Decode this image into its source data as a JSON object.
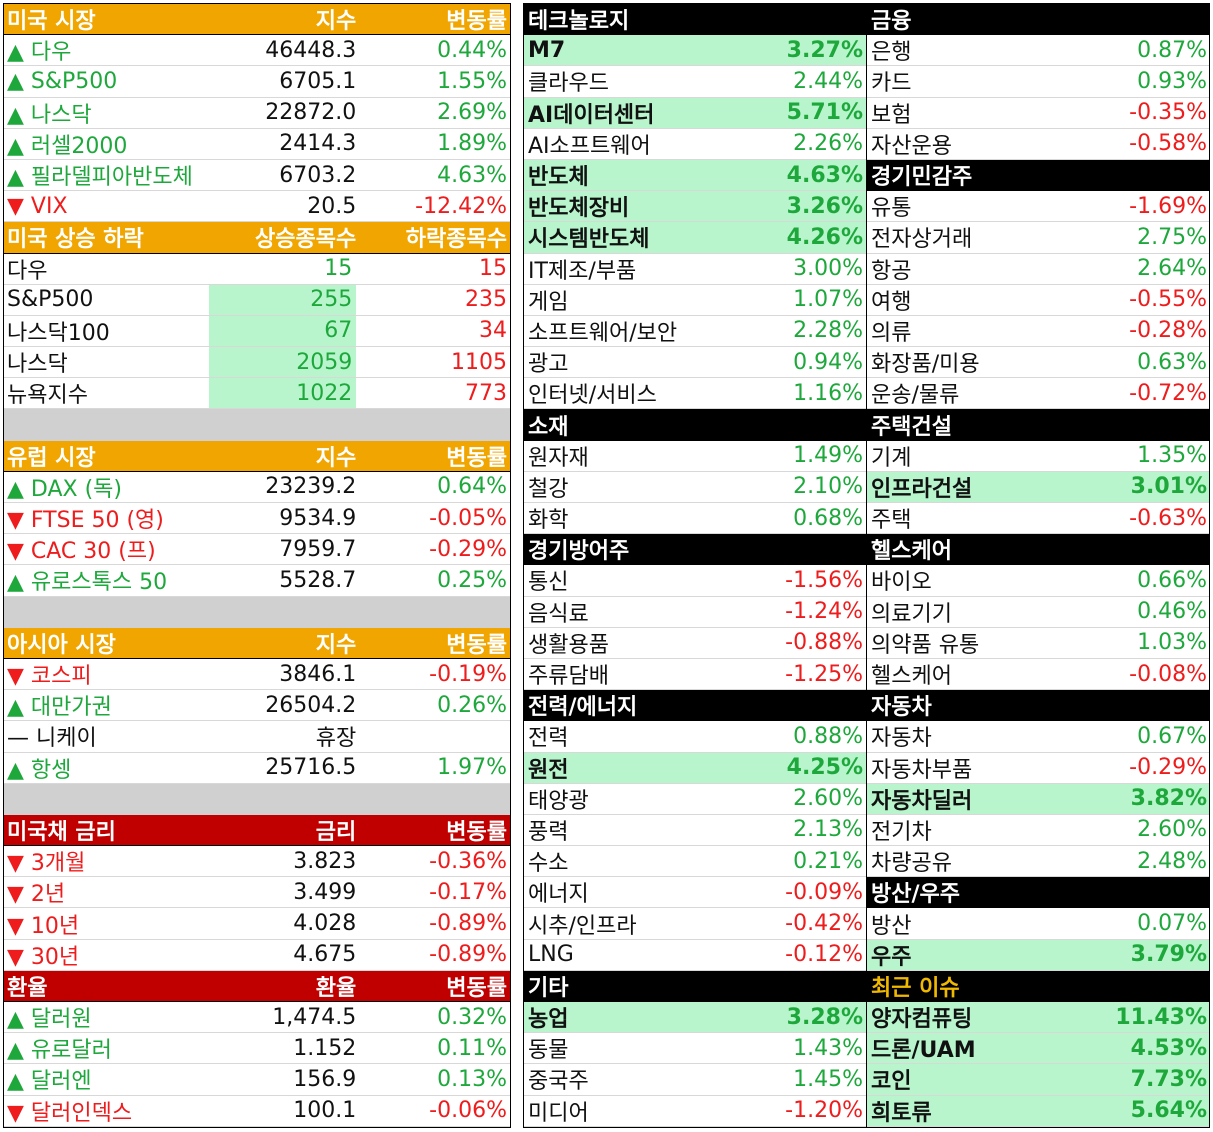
{
  "left_tables": [
    {
      "header": {
        "name": "미국 시장",
        "col1": "지수",
        "col2": "변동률"
      },
      "header_color": "orange",
      "rows": [
        {
          "name": "▲ 다우",
          "v1": "46448.3",
          "v2": "0.44%",
          "dir": "up"
        },
        {
          "name": "▲ S&P500",
          "v1": "6705.1",
          "v2": "1.55%",
          "dir": "up"
        },
        {
          "name": "▲ 나스닥",
          "v1": "22872.0",
          "v2": "2.69%",
          "dir": "up"
        },
        {
          "name": "▲ 러셀2000",
          "v1": "2414.3",
          "v2": "1.89%",
          "dir": "up"
        },
        {
          "name": "▲ 필라델피아반도체",
          "v1": "6703.2",
          "v2": "4.63%",
          "dir": "up"
        },
        {
          "name": "▼ VIX",
          "v1": "20.5",
          "v2": "-12.42%",
          "dir": "down"
        }
      ]
    },
    {
      "header": {
        "name": "미국 상승 하락",
        "col1": "상승종목수",
        "col2": "하락종목수"
      },
      "header_color": "orange",
      "breadth": true,
      "rows": [
        {
          "name": "다우",
          "v1": "15",
          "v2": "15",
          "hl": false
        },
        {
          "name": "S&P500",
          "v1": "255",
          "v2": "235",
          "hl": true
        },
        {
          "name": "나스닥100",
          "v1": "67",
          "v2": "34",
          "hl": true
        },
        {
          "name": "나스닥",
          "v1": "2059",
          "v2": "1105",
          "hl": true
        },
        {
          "name": "뉴욕지수",
          "v1": "1022",
          "v2": "773",
          "hl": true
        }
      ],
      "gap_after": true
    },
    {
      "header": {
        "name": "유럽 시장",
        "col1": "지수",
        "col2": "변동률"
      },
      "header_color": "orange",
      "rows": [
        {
          "name": "▲ DAX (독)",
          "v1": "23239.2",
          "v2": "0.64%",
          "dir": "up"
        },
        {
          "name": "▼ FTSE 50 (영)",
          "v1": "9534.9",
          "v2": "-0.05%",
          "dir": "down"
        },
        {
          "name": "▼ CAC 30 (프)",
          "v1": "7959.7",
          "v2": "-0.29%",
          "dir": "down"
        },
        {
          "name": "▲ 유로스톡스 50",
          "v1": "5528.7",
          "v2": "0.25%",
          "dir": "up"
        }
      ],
      "gap_after": true
    },
    {
      "header": {
        "name": "아시아 시장",
        "col1": "지수",
        "col2": "변동률"
      },
      "header_color": "orange",
      "rows": [
        {
          "name": "▼ 코스피",
          "v1": "3846.1",
          "v2": "-0.19%",
          "dir": "down"
        },
        {
          "name": "▲ 대만가권",
          "v1": "26504.2",
          "v2": "0.26%",
          "dir": "up"
        },
        {
          "name": "— 니케이",
          "v1": "휴장",
          "v2": "",
          "dir": "flat"
        },
        {
          "name": "▲ 항셍",
          "v1": "25716.5",
          "v2": "1.97%",
          "dir": "up"
        }
      ],
      "gap_after": true
    },
    {
      "header": {
        "name": "미국채 금리",
        "col1": "금리",
        "col2": "변동률"
      },
      "header_color": "red",
      "rows": [
        {
          "name": "▼ 3개월",
          "v1": "3.823",
          "v2": "-0.36%",
          "dir": "down"
        },
        {
          "name": "▼ 2년",
          "v1": "3.499",
          "v2": "-0.17%",
          "dir": "down"
        },
        {
          "name": "▼ 10년",
          "v1": "4.028",
          "v2": "-0.89%",
          "dir": "down"
        },
        {
          "name": "▼ 30년",
          "v1": "4.675",
          "v2": "-0.89%",
          "dir": "down"
        }
      ]
    },
    {
      "header": {
        "name": "환율",
        "col1": "환율",
        "col2": "변동률"
      },
      "header_color": "red",
      "rows": [
        {
          "name": "▲ 달러원",
          "v1": "1,474.5",
          "v2": "0.32%",
          "dir": "up"
        },
        {
          "name": "▲ 유로달러",
          "v1": "1.152",
          "v2": "0.11%",
          "dir": "up"
        },
        {
          "name": "▲ 달러엔",
          "v1": "156.9",
          "v2": "0.13%",
          "dir": "up"
        },
        {
          "name": "▼ 달러인덱스",
          "v1": "100.1",
          "v2": "-0.06%",
          "dir": "down"
        }
      ]
    }
  ],
  "right_columns": [
    [
      {
        "header": "테크놀로지"
      },
      {
        "name": "M7",
        "val": "3.27%",
        "hl": true
      },
      {
        "name": "클라우드",
        "val": "2.44%"
      },
      {
        "name": "AI데이터센터",
        "val": "5.71%",
        "hl": true
      },
      {
        "name": "AI소프트웨어",
        "val": "2.26%"
      },
      {
        "name": "반도체",
        "val": "4.63%",
        "hl": true
      },
      {
        "name": "반도체장비",
        "val": "3.26%",
        "hl": true
      },
      {
        "name": "시스템반도체",
        "val": "4.26%",
        "hl": true
      },
      {
        "name": "IT제조/부품",
        "val": "3.00%"
      },
      {
        "name": "게임",
        "val": "1.07%"
      },
      {
        "name": "소프트웨어/보안",
        "val": "2.28%"
      },
      {
        "name": "광고",
        "val": "0.94%"
      },
      {
        "name": "인터넷/서비스",
        "val": "1.16%"
      },
      {
        "header": "소재"
      },
      {
        "name": "원자재",
        "val": "1.49%"
      },
      {
        "name": "철강",
        "val": "2.10%"
      },
      {
        "name": "화학",
        "val": "0.68%"
      },
      {
        "header": "경기방어주"
      },
      {
        "name": "통신",
        "val": "-1.56%"
      },
      {
        "name": "음식료",
        "val": "-1.24%"
      },
      {
        "name": "생활용품",
        "val": "-0.88%"
      },
      {
        "name": "주류담배",
        "val": "-1.25%"
      },
      {
        "header": "전력/에너지"
      },
      {
        "name": "전력",
        "val": "0.88%"
      },
      {
        "name": "원전",
        "val": "4.25%",
        "hl": true
      },
      {
        "name": "태양광",
        "val": "2.60%"
      },
      {
        "name": "풍력",
        "val": "2.13%"
      },
      {
        "name": "수소",
        "val": "0.21%"
      },
      {
        "name": "에너지",
        "val": "-0.09%"
      },
      {
        "name": "시추/인프라",
        "val": "-0.42%"
      },
      {
        "name": "LNG",
        "val": "-0.12%"
      },
      {
        "header": "기타"
      },
      {
        "name": "농업",
        "val": "3.28%",
        "hl": true
      },
      {
        "name": "동물",
        "val": "1.43%"
      },
      {
        "name": "중국주",
        "val": "1.45%"
      },
      {
        "name": "미디어",
        "val": "-1.20%"
      }
    ],
    [
      {
        "header": "금융"
      },
      {
        "name": "은행",
        "val": "0.87%"
      },
      {
        "name": "카드",
        "val": "0.93%"
      },
      {
        "name": "보험",
        "val": "-0.35%"
      },
      {
        "name": "자산운용",
        "val": "-0.58%"
      },
      {
        "header": "경기민감주"
      },
      {
        "name": "유통",
        "val": "-1.69%"
      },
      {
        "name": "전자상거래",
        "val": "2.75%"
      },
      {
        "name": "항공",
        "val": "2.64%"
      },
      {
        "name": "여행",
        "val": "-0.55%"
      },
      {
        "name": "의류",
        "val": "-0.28%"
      },
      {
        "name": "화장품/미용",
        "val": "0.63%"
      },
      {
        "name": "운송/물류",
        "val": "-0.72%"
      },
      {
        "header": "주택건설"
      },
      {
        "name": "기계",
        "val": "1.35%"
      },
      {
        "name": "인프라건설",
        "val": "3.01%",
        "hl": true
      },
      {
        "name": "주택",
        "val": "-0.63%"
      },
      {
        "header": "헬스케어"
      },
      {
        "name": "바이오",
        "val": "0.66%"
      },
      {
        "name": "의료기기",
        "val": "0.46%"
      },
      {
        "name": "의약품 유통",
        "val": "1.03%"
      },
      {
        "name": "헬스케어",
        "val": "-0.08%"
      },
      {
        "header": "자동차"
      },
      {
        "name": "자동차",
        "val": "0.67%"
      },
      {
        "name": "자동차부품",
        "val": "-0.29%"
      },
      {
        "name": "자동차딜러",
        "val": "3.82%",
        "hl": true
      },
      {
        "name": "전기차",
        "val": "2.60%"
      },
      {
        "name": "차량공유",
        "val": "2.48%"
      },
      {
        "header": "방산/우주"
      },
      {
        "name": "방산",
        "val": "0.07%"
      },
      {
        "name": "우주",
        "val": "3.79%",
        "hl": true
      },
      {
        "header": "최근 이슈",
        "gold": true
      },
      {
        "name": "양자컴퓨팅",
        "val": "11.43%",
        "hl": true
      },
      {
        "name": "드론/UAM",
        "val": "4.53%",
        "hl": true
      },
      {
        "name": "코인",
        "val": "7.73%",
        "hl": true
      },
      {
        "name": "희토류",
        "val": "5.64%",
        "hl": true
      }
    ]
  ],
  "colors": {
    "up": "#1ea83c",
    "down": "#ee1c1c",
    "orange": "#f0a500",
    "red": "#c00000",
    "highlight": "#b8f5cc"
  }
}
